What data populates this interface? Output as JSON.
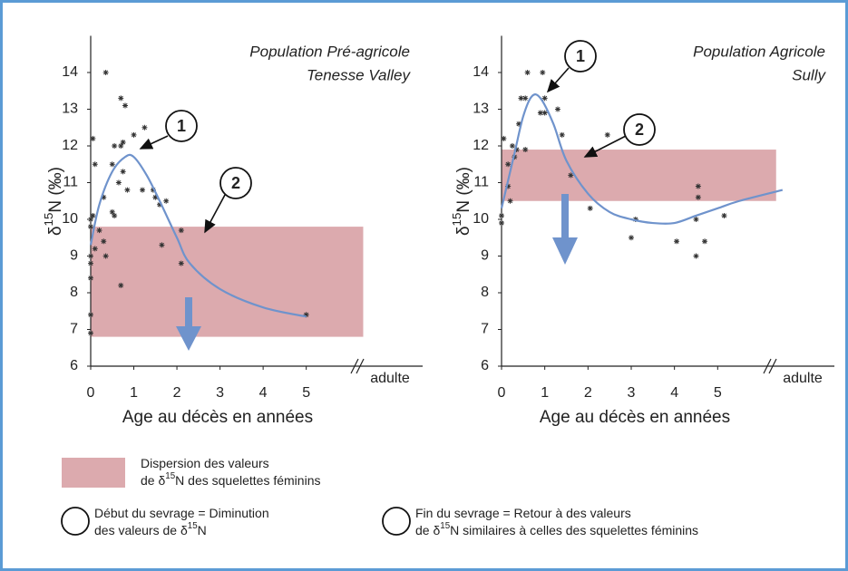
{
  "chart_data": [
    {
      "type": "scatter-curve",
      "title": [
        "Population Pré-agricole",
        "Tenesse Valley"
      ],
      "ylabel": [
        "δ",
        "15",
        "N (‰)"
      ],
      "xlabel": "Age au décès en années",
      "x_break_label": "adulte",
      "xlim": [
        0,
        7.7
      ],
      "ylim": [
        6,
        15
      ],
      "xticks": [
        0,
        1,
        2,
        3,
        4,
        5
      ],
      "yticks": [
        6,
        7,
        8,
        9,
        10,
        11,
        12,
        13,
        14
      ],
      "band": [
        6.8,
        9.8
      ],
      "band_color": "#dcaaae",
      "curve": {
        "color": "#6f93cc",
        "x": [
          0,
          0.2,
          0.5,
          0.8,
          1.0,
          1.3,
          1.6,
          2.0,
          2.3,
          3.0,
          4.0,
          5.0
        ],
        "y": [
          9.3,
          10.4,
          11.3,
          11.7,
          11.7,
          11.2,
          10.5,
          9.5,
          8.8,
          8.1,
          7.6,
          7.35
        ]
      },
      "points": {
        "color": "#333333",
        "x": [
          0,
          0,
          0,
          0,
          0,
          0,
          0,
          0.05,
          0.1,
          0.05,
          0.1,
          0.2,
          0.3,
          0.35,
          0.35,
          0.3,
          0.5,
          0.55,
          0.5,
          0.55,
          0.65,
          0.7,
          0.75,
          0.75,
          0.7,
          0.8,
          0.85,
          0.7,
          1.0,
          1.25,
          1.2,
          1.45,
          1.5,
          1.6,
          1.75,
          1.65,
          2.1,
          2.1,
          5.0
        ],
        "y": [
          10.0,
          9.8,
          9.0,
          8.8,
          8.4,
          7.4,
          6.9,
          12.2,
          11.5,
          10.1,
          9.2,
          9.7,
          9.4,
          9.0,
          14.0,
          10.6,
          10.2,
          10.1,
          11.5,
          12.0,
          11.0,
          12.0,
          12.1,
          11.3,
          13.3,
          13.1,
          10.8,
          8.2,
          12.3,
          12.5,
          10.8,
          10.8,
          10.6,
          10.4,
          10.5,
          9.3,
          9.7,
          8.8,
          7.4
        ]
      },
      "annotations": [
        "1",
        "2"
      ]
    },
    {
      "type": "scatter-curve",
      "title": [
        "Population Agricole",
        "Sully"
      ],
      "ylabel": [
        "δ",
        "15",
        "N (‰)"
      ],
      "xlabel": "Age au décès en années",
      "x_break_label": "adulte",
      "xlim": [
        0,
        7.7
      ],
      "ylim": [
        6,
        15
      ],
      "xticks": [
        0,
        1,
        2,
        3,
        4,
        5
      ],
      "yticks": [
        6,
        7,
        8,
        9,
        10,
        11,
        12,
        13,
        14
      ],
      "band": [
        10.5,
        11.9
      ],
      "band_color": "#dcaaae",
      "curve": {
        "color": "#6f93cc",
        "x": [
          0,
          0.3,
          0.5,
          0.7,
          0.9,
          1.2,
          1.5,
          2.0,
          2.5,
          3.0,
          3.5,
          4.0,
          4.5,
          5.0,
          5.5,
          6.5
        ],
        "y": [
          10.3,
          11.8,
          12.8,
          13.35,
          13.3,
          12.6,
          11.6,
          10.7,
          10.2,
          10.0,
          9.9,
          9.9,
          10.1,
          10.3,
          10.5,
          10.8
        ]
      },
      "points": {
        "color": "#333333",
        "x": [
          0,
          0,
          0.05,
          0.15,
          0.15,
          0.2,
          0.25,
          0.3,
          0.35,
          0.4,
          0.45,
          0.55,
          0.6,
          0.55,
          0.95,
          0.9,
          1.0,
          1.0,
          1.3,
          1.4,
          1.6,
          2.05,
          2.45,
          3.0,
          3.1,
          4.05,
          4.5,
          4.5,
          4.55,
          4.55,
          4.7,
          5.15
        ],
        "y": [
          10.1,
          9.9,
          12.2,
          11.5,
          10.9,
          10.5,
          12.0,
          11.7,
          11.9,
          12.6,
          13.3,
          13.3,
          14.0,
          11.9,
          14.0,
          12.9,
          12.9,
          13.3,
          13.0,
          12.3,
          11.2,
          10.3,
          12.3,
          9.5,
          10.0,
          9.4,
          10.0,
          9.0,
          10.9,
          10.6,
          9.4,
          10.1
        ]
      },
      "annotations": [
        "1",
        "2"
      ]
    }
  ],
  "legend": {
    "band": [
      [
        "Dispersion des valeurs"
      ],
      [
        "de δ",
        "15",
        "N des squelettes féminins"
      ]
    ],
    "items": [
      {
        "number": "1",
        "lines": [
          [
            "Début du sevrage = Diminution"
          ],
          [
            "des valeurs de δ",
            "15",
            "N"
          ]
        ]
      },
      {
        "number": "2",
        "lines": [
          [
            "Fin du sevrage = Retour à des valeurs"
          ],
          [
            "de δ",
            "15",
            "N similaires à celles des squelettes féminins"
          ]
        ]
      }
    ]
  }
}
